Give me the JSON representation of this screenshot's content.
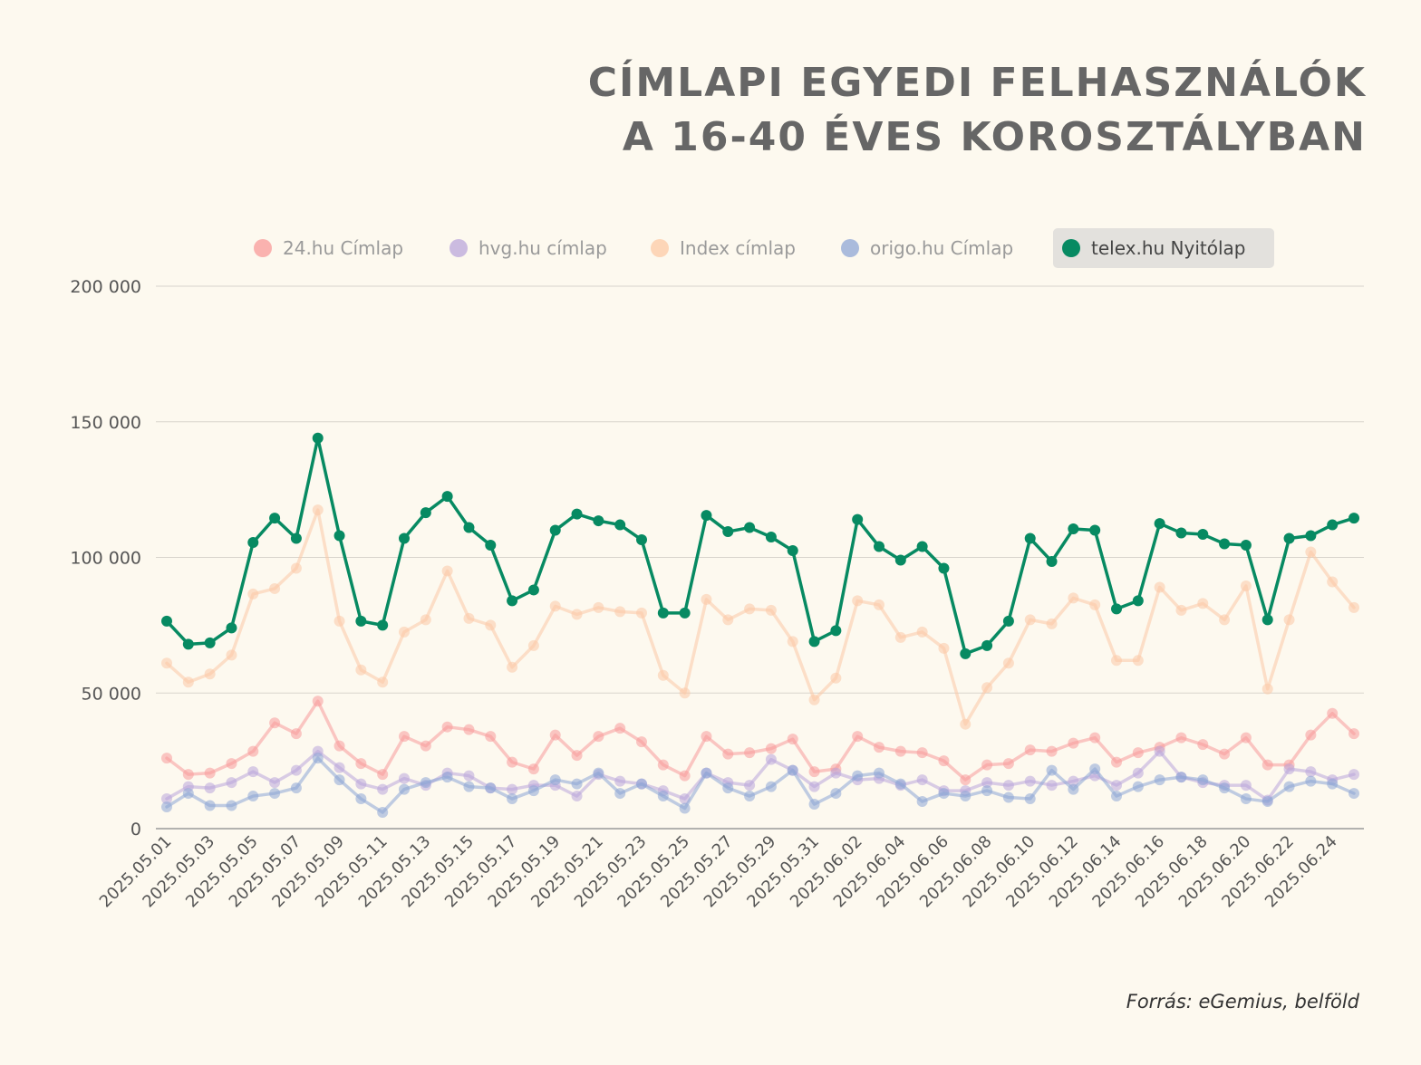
{
  "title": {
    "line1": "CÍMLAPI EGYEDI FELHASZNÁLÓK",
    "line2": "A 16-40 ÉVES KOROSZTÁLYBAN"
  },
  "source": "Forrás: eGemius, belföld",
  "chart_data": {
    "type": "line",
    "ylim": [
      0,
      200000
    ],
    "yticks": [
      0,
      50000,
      100000,
      150000,
      200000
    ],
    "ytick_labels": [
      "0",
      "50 000",
      "100 000",
      "150 000",
      "200 000"
    ],
    "grid": true,
    "legend_position": "top",
    "x": [
      "2025.05.01",
      "2025.05.02",
      "2025.05.03",
      "2025.05.04",
      "2025.05.05",
      "2025.05.06",
      "2025.05.07",
      "2025.05.08",
      "2025.05.09",
      "2025.05.10",
      "2025.05.11",
      "2025.05.12",
      "2025.05.13",
      "2025.05.14",
      "2025.05.15",
      "2025.05.16",
      "2025.05.17",
      "2025.05.18",
      "2025.05.19",
      "2025.05.20",
      "2025.05.21",
      "2025.05.22",
      "2025.05.23",
      "2025.05.24",
      "2025.05.25",
      "2025.05.26",
      "2025.05.27",
      "2025.05.28",
      "2025.05.29",
      "2025.05.30",
      "2025.05.31",
      "2025.06.01",
      "2025.06.02",
      "2025.06.03",
      "2025.06.04",
      "2025.06.05",
      "2025.06.06",
      "2025.06.07",
      "2025.06.08",
      "2025.06.09",
      "2025.06.10",
      "2025.06.11",
      "2025.06.12",
      "2025.06.13",
      "2025.06.14",
      "2025.06.15",
      "2025.06.16",
      "2025.06.17",
      "2025.06.18",
      "2025.06.19",
      "2025.06.20",
      "2025.06.21",
      "2025.06.22",
      "2025.06.23",
      "2025.06.24",
      "2025.06.25"
    ],
    "xtick_labels": [
      "2025.05.01",
      "2025.05.03",
      "2025.05.05",
      "2025.05.07",
      "2025.05.09",
      "2025.05.11",
      "2025.05.13",
      "2025.05.15",
      "2025.05.17",
      "2025.05.19",
      "2025.05.21",
      "2025.05.23",
      "2025.05.25",
      "2025.05.27",
      "2025.05.29",
      "2025.05.31",
      "2025.06.02",
      "2025.06.04",
      "2025.06.06",
      "2025.06.08",
      "2025.06.10",
      "2025.06.12",
      "2025.06.14",
      "2025.06.16",
      "2025.06.18",
      "2025.06.20",
      "2025.06.22",
      "2025.06.24"
    ],
    "series": [
      {
        "name": "24.hu Címlap",
        "color": "#f89a9a",
        "highlighted": false,
        "values": [
          26000,
          20000,
          20500,
          24000,
          28500,
          39000,
          35000,
          47000,
          30500,
          24000,
          20000,
          34000,
          30500,
          37500,
          36500,
          34000,
          24500,
          22000,
          34500,
          27000,
          34000,
          37000,
          32000,
          23500,
          19500,
          34000,
          27500,
          28000,
          29500,
          33000,
          21000,
          22000,
          34000,
          30000,
          28500,
          28000,
          25000,
          18000,
          23500,
          24000,
          29000,
          28500,
          31500,
          33500,
          24500,
          28000,
          30000,
          33500,
          31000,
          27500,
          33500,
          23500,
          23500,
          34500,
          42500,
          35000
        ]
      },
      {
        "name": "hvg.hu címlap",
        "color": "#b9a5db",
        "highlighted": false,
        "values": [
          11000,
          15500,
          15000,
          17000,
          21000,
          17000,
          21500,
          28500,
          22500,
          16500,
          14500,
          18500,
          16000,
          20500,
          19500,
          15000,
          14500,
          16000,
          16000,
          12000,
          20000,
          17500,
          16500,
          14000,
          11000,
          20500,
          17000,
          16000,
          25500,
          21500,
          15500,
          20500,
          18000,
          18500,
          16000,
          18000,
          14000,
          14000,
          17000,
          16000,
          17500,
          16000,
          17500,
          19500,
          16000,
          20500,
          28500,
          19000,
          17000,
          16000,
          16000,
          10500,
          22000,
          21000,
          18000,
          20000
        ]
      },
      {
        "name": "Index címlap",
        "color": "#fcc9a6",
        "highlighted": false,
        "values": [
          61000,
          54000,
          57000,
          64000,
          86500,
          88500,
          96000,
          117500,
          76500,
          58500,
          54000,
          72500,
          77000,
          95000,
          77500,
          75000,
          59500,
          67500,
          82000,
          79000,
          81500,
          80000,
          79500,
          56500,
          50000,
          84500,
          77000,
          81000,
          80500,
          69000,
          47500,
          55500,
          84000,
          82500,
          70500,
          72500,
          66500,
          38500,
          52000,
          61000,
          77000,
          75500,
          85000,
          82500,
          62000,
          62000,
          89000,
          80500,
          83000,
          77000,
          89500,
          51500,
          77000,
          102000,
          91000,
          81500
        ]
      },
      {
        "name": "origo.hu Címlap",
        "color": "#8da6d5",
        "highlighted": false,
        "values": [
          8000,
          13000,
          8500,
          8500,
          12000,
          13000,
          15000,
          26000,
          18000,
          11000,
          6000,
          14500,
          17000,
          19000,
          15500,
          15000,
          11000,
          14000,
          18000,
          16500,
          20500,
          13000,
          16500,
          12000,
          7500,
          20500,
          15000,
          12000,
          15500,
          21500,
          9000,
          13000,
          19500,
          20500,
          16500,
          10000,
          13000,
          12000,
          14000,
          11500,
          11000,
          21500,
          14500,
          22000,
          12000,
          15500,
          18000,
          19000,
          18000,
          15000,
          11000,
          10000,
          15500,
          17500,
          16500,
          13000
        ]
      },
      {
        "name": "telex.hu Nyitólap",
        "color": "#078a62",
        "highlighted": true,
        "values": [
          76500,
          68000,
          68500,
          74000,
          105500,
          114500,
          107000,
          144000,
          108000,
          76500,
          75000,
          107000,
          116500,
          122500,
          111000,
          104500,
          84000,
          88000,
          110000,
          116000,
          113500,
          112000,
          106500,
          79500,
          79500,
          115500,
          109500,
          111000,
          107500,
          102500,
          69000,
          73000,
          114000,
          104000,
          99000,
          104000,
          96000,
          64500,
          67500,
          76500,
          107000,
          98500,
          110500,
          110000,
          81000,
          84000,
          112500,
          109000,
          108500,
          105000,
          104500,
          77000,
          107000,
          108000,
          112000,
          114500
        ]
      }
    ]
  }
}
